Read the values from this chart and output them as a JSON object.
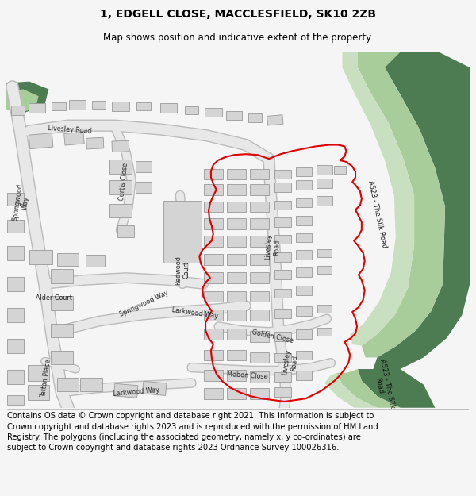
{
  "title": "1, EDGELL CLOSE, MACCLESFIELD, SK10 2ZB",
  "subtitle": "Map shows position and indicative extent of the property.",
  "footer": "Contains OS data © Crown copyright and database right 2021. This information is subject to Crown copyright and database rights 2023 and is reproduced with the permission of HM Land Registry. The polygons (including the associated geometry, namely x, y co-ordinates) are subject to Crown copyright and database rights 2023 Ordnance Survey 100026316.",
  "bg_color": "#f5f5f5",
  "map_bg": "#ffffff",
  "building_color": "#d4d4d4",
  "building_edge": "#999999",
  "green_dark": "#4d7c52",
  "green_light": "#a8cc9a",
  "green_pale": "#c8e0c0",
  "red_outline": "#e00000",
  "title_fontsize": 10,
  "subtitle_fontsize": 8.5,
  "footer_fontsize": 7.2
}
